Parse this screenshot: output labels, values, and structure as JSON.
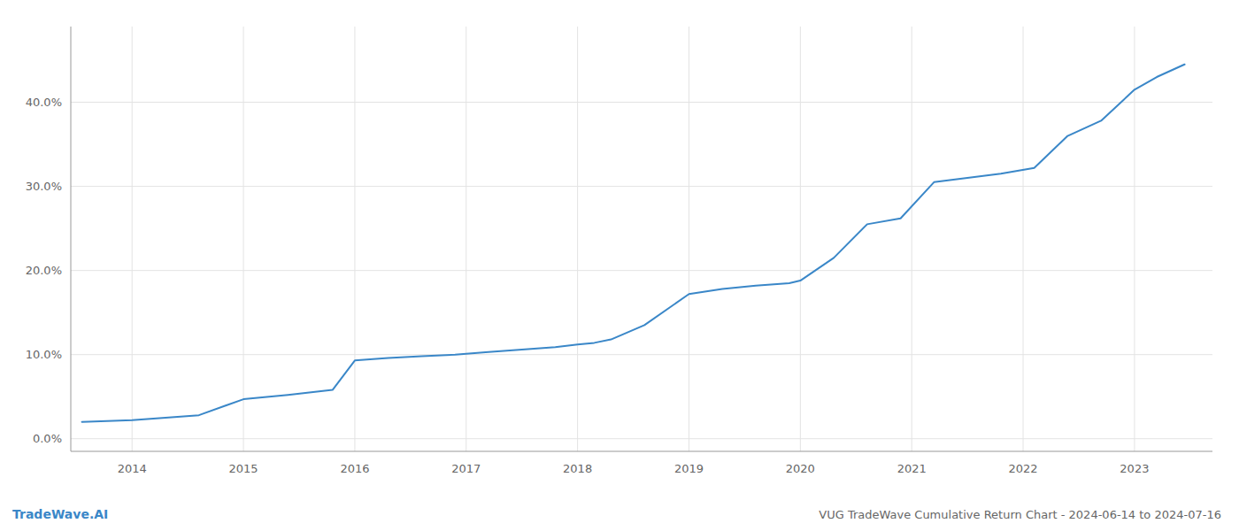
{
  "chart_data": {
    "type": "line",
    "title": "VUG TradeWave Cumulative Return Chart - 2024-06-14 to 2024-07-16",
    "annotations": [
      "TradeWave.AI"
    ],
    "color": "#3a87c8",
    "grid": true,
    "x": [
      2013.55,
      2014.0,
      2014.3,
      2014.6,
      2015.0,
      2015.4,
      2015.8,
      2016.0,
      2016.3,
      2016.6,
      2016.9,
      2017.2,
      2017.5,
      2017.8,
      2018.0,
      2018.15,
      2018.3,
      2018.6,
      2019.0,
      2019.3,
      2019.6,
      2019.9,
      2020.0,
      2020.3,
      2020.6,
      2020.9,
      2021.2,
      2021.5,
      2021.8,
      2022.1,
      2022.4,
      2022.7,
      2023.0,
      2023.2,
      2023.45
    ],
    "values": [
      0.02,
      0.022,
      0.025,
      0.028,
      0.047,
      0.052,
      0.058,
      0.093,
      0.096,
      0.098,
      0.1,
      0.103,
      0.106,
      0.109,
      0.112,
      0.114,
      0.118,
      0.135,
      0.172,
      0.178,
      0.182,
      0.185,
      0.188,
      0.215,
      0.255,
      0.262,
      0.305,
      0.31,
      0.315,
      0.322,
      0.36,
      0.378,
      0.415,
      0.43,
      0.445
    ],
    "xlim": [
      2013.45,
      2023.7
    ],
    "xticks": [
      2014,
      2015,
      2016,
      2017,
      2018,
      2019,
      2020,
      2021,
      2022,
      2023
    ],
    "ylim": [
      -0.015,
      0.49
    ],
    "yticks": [
      {
        "value": 0.0,
        "label": "0.0%"
      },
      {
        "value": 0.1,
        "label": "10.0%"
      },
      {
        "value": 0.2,
        "label": "20.0%"
      },
      {
        "value": 0.3,
        "label": "30.0%"
      },
      {
        "value": 0.4,
        "label": "40.0%"
      }
    ]
  }
}
